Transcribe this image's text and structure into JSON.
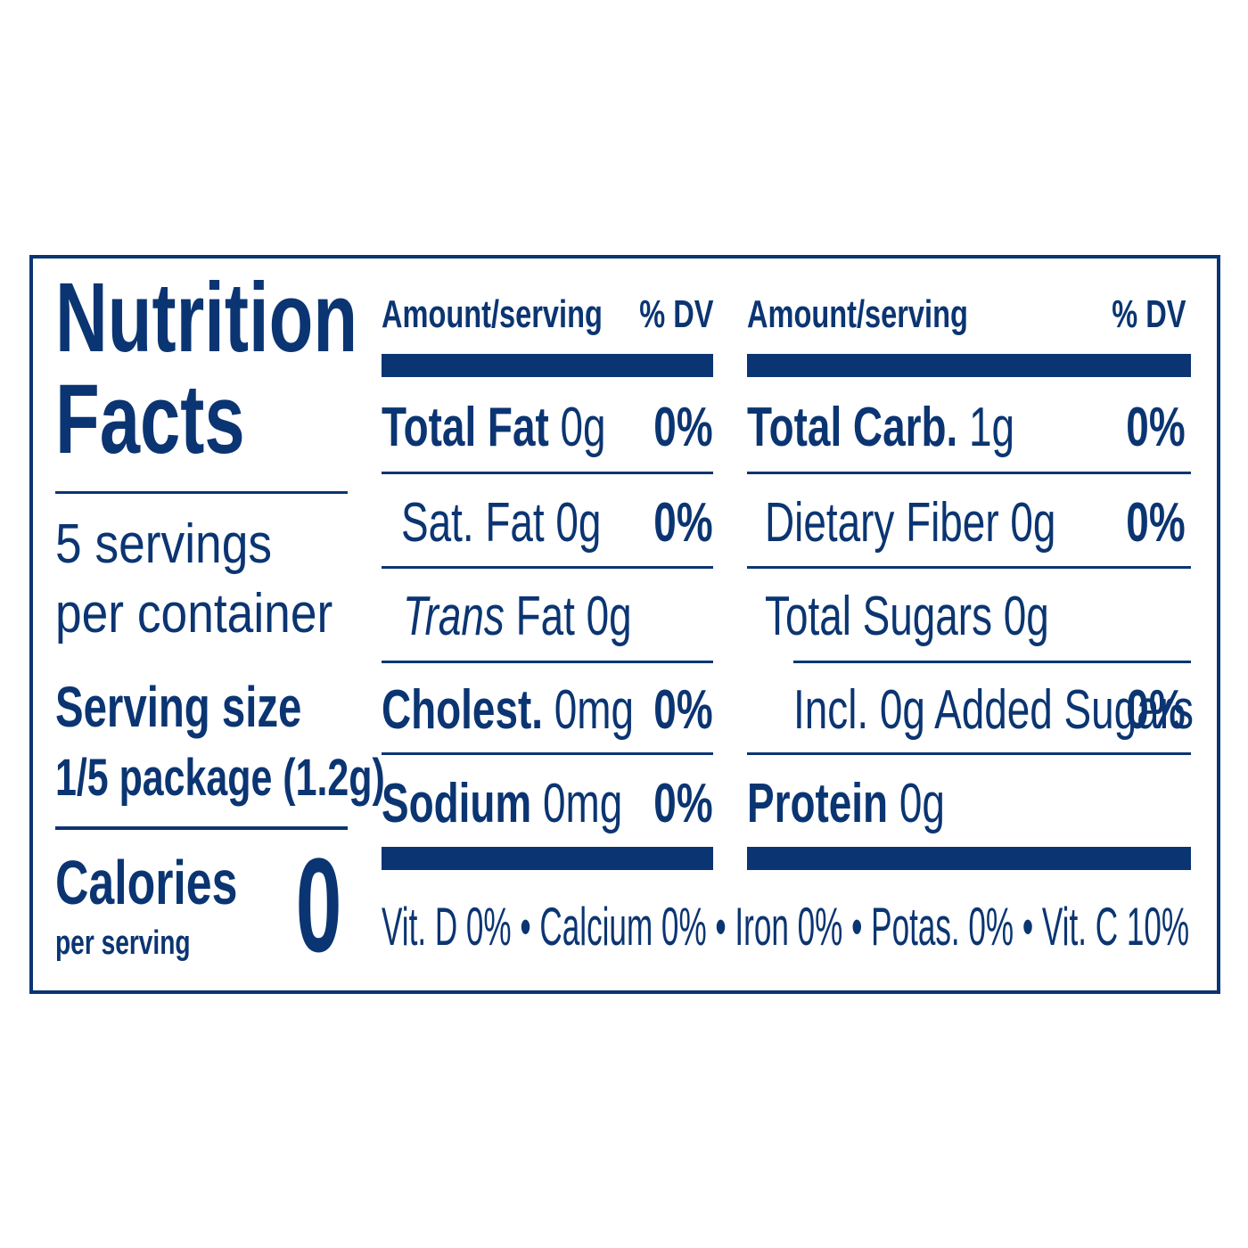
{
  "label": {
    "title": "Nutrition Facts",
    "servings": "5 servings per container",
    "serving_size": {
      "label": "Serving size",
      "value": "1/5 package (1.2g)"
    },
    "calories": {
      "label": "Calories",
      "note": "per serving",
      "value": "0"
    },
    "columns": [
      {
        "header": {
          "amount": "Amount/serving",
          "dv": "% DV"
        },
        "rows": [
          {
            "name": "Total Fat",
            "text": "0g",
            "dv": "0%"
          },
          {
            "text": "Sat. Fat 0g",
            "dv": "0%"
          },
          {
            "italic": "Trans",
            "text": "Fat 0g"
          },
          {
            "name": "Cholest.",
            "text": "0mg",
            "dv": "0%"
          },
          {
            "name": "Sodium",
            "text": "0mg",
            "dv": "0%"
          }
        ]
      },
      {
        "header": {
          "amount": "Amount/serving",
          "dv": "% DV"
        },
        "rows": [
          {
            "name": "Total Carb.",
            "text": "1g",
            "dv": "0%"
          },
          {
            "text": "Dietary Fiber 0g",
            "dv": "0%"
          },
          {
            "text": "Total Sugars 0g"
          },
          {
            "text": "Incl. 0g Added Sugars",
            "dv": "0%"
          },
          {
            "name": "Protein",
            "text": "0g"
          }
        ]
      }
    ],
    "footer": "Vit. D 0% • Calcium 0% • Iron 0% • Potas. 0% • Vit. C 10%"
  }
}
